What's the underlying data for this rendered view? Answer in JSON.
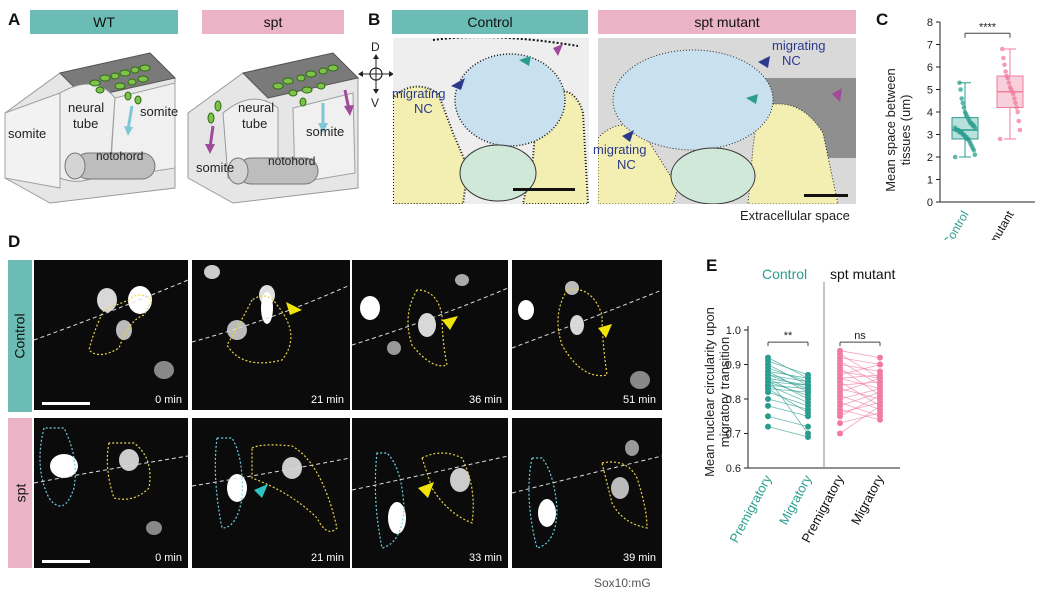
{
  "panels": {
    "A": {
      "label": "A",
      "wt_banner": "WT",
      "spt_banner": "spt",
      "wt_labels": {
        "somite_left": "somite",
        "neural": "neural",
        "tube": "tube",
        "somite_right": "somite",
        "notochord": "notohord"
      },
      "spt_labels": {
        "neural": "neural",
        "tube": "tube",
        "somite_right": "somite",
        "somite_left": "somite",
        "notochord": "notohord"
      }
    },
    "B": {
      "label": "B",
      "control_banner": "Control",
      "spt_banner": "spt mutant",
      "axis": {
        "d": "D",
        "v": "V"
      },
      "control_labels": {
        "migrating": "migrating",
        "nc": "NC"
      },
      "spt_labels": {
        "migrating_top": "migrating",
        "nc_top": "NC",
        "migrating_bottom": "migrating",
        "nc_bottom": "NC"
      },
      "caption": "Extracellular space"
    },
    "C": {
      "label": "C",
      "ylabel_line1": "Mean space between",
      "ylabel_line2": "tissues (um)",
      "significance": "****",
      "yticks": [
        "0",
        "1",
        "2",
        "3",
        "4",
        "5",
        "6",
        "7",
        "8"
      ],
      "categories": [
        "Control",
        "spt mutant"
      ]
    },
    "D": {
      "label": "D",
      "row_control": "Control",
      "row_spt": "spt",
      "control_times": [
        "0 min",
        "21 min",
        "36 min",
        "51 min"
      ],
      "spt_times": [
        "0 min",
        "21 min",
        "33 min",
        "39 min"
      ],
      "caption": "Sox10:mG"
    },
    "E": {
      "label": "E",
      "group_control": "Control",
      "group_spt": "spt mutant",
      "ylabel_line1": "Mean nuclear circularity upon",
      "ylabel_line2": "migratory transition",
      "yticks": [
        "0.6",
        "0.7",
        "0.8",
        "0.9",
        "1.0"
      ],
      "sig_control": "**",
      "sig_spt": "ns",
      "xlabels": [
        "Premigratory",
        "Migratory",
        "Premigratory",
        "Migratory"
      ]
    }
  },
  "colors": {
    "teal": "#6bbcb4",
    "pink": "#eab3c6",
    "teal_dark": "#2a9d8f",
    "pink_dark": "#f07ca0",
    "navy": "#2b3a8c",
    "purple": "#a04a9a",
    "yellow": "#e8d44a",
    "cyan": "#6ecfe0"
  },
  "chart_data": [
    {
      "type": "box",
      "title": "",
      "xlabel": "",
      "ylabel": "Mean space between tissues (um)",
      "ylim": [
        0,
        8
      ],
      "categories": [
        "Control",
        "spt mutant"
      ],
      "series": [
        {
          "name": "Control",
          "q1": 2.8,
          "median": 3.2,
          "q3": 3.75,
          "whisker_low": 2.0,
          "whisker_high": 5.3,
          "values": [
            2.0,
            2.1,
            2.3,
            2.4,
            2.5,
            2.6,
            2.7,
            2.8,
            2.8,
            2.9,
            2.9,
            3.0,
            3.0,
            3.1,
            3.1,
            3.1,
            3.2,
            3.2,
            3.2,
            3.3,
            3.3,
            3.4,
            3.4,
            3.5,
            3.5,
            3.6,
            3.7,
            3.8,
            3.9,
            4.0,
            4.2,
            4.4,
            4.6,
            5.0,
            5.3
          ]
        },
        {
          "name": "spt mutant",
          "q1": 4.2,
          "median": 4.9,
          "q3": 5.6,
          "whisker_low": 2.8,
          "whisker_high": 6.8,
          "values": [
            2.8,
            3.2,
            3.6,
            4.0,
            4.2,
            4.4,
            4.6,
            4.8,
            4.9,
            5.0,
            5.1,
            5.3,
            5.5,
            5.6,
            5.8,
            6.1,
            6.4,
            6.8
          ]
        }
      ],
      "annotation": "****"
    },
    {
      "type": "paired-line",
      "title": "",
      "ylabel": "Mean nuclear circularity upon migratory transition",
      "ylim": [
        0.6,
        1.0
      ],
      "categories": [
        "Premigratory",
        "Migratory",
        "Premigratory",
        "Migratory"
      ],
      "series": [
        {
          "name": "Control",
          "pairs": [
            [
              0.92,
              0.86
            ],
            [
              0.91,
              0.87
            ],
            [
              0.9,
              0.84
            ],
            [
              0.89,
              0.85
            ],
            [
              0.88,
              0.86
            ],
            [
              0.88,
              0.82
            ],
            [
              0.87,
              0.85
            ],
            [
              0.87,
              0.83
            ],
            [
              0.86,
              0.84
            ],
            [
              0.86,
              0.8
            ],
            [
              0.85,
              0.84
            ],
            [
              0.85,
              0.81
            ],
            [
              0.84,
              0.83
            ],
            [
              0.84,
              0.79
            ],
            [
              0.83,
              0.82
            ],
            [
              0.82,
              0.78
            ],
            [
              0.8,
              0.77
            ],
            [
              0.78,
              0.75
            ],
            [
              0.75,
              0.72
            ],
            [
              0.72,
              0.69
            ],
            [
              0.83,
              0.76
            ],
            [
              0.86,
              0.7
            ]
          ]
        },
        {
          "name": "spt mutant",
          "pairs": [
            [
              0.94,
              0.92
            ],
            [
              0.93,
              0.86
            ],
            [
              0.92,
              0.9
            ],
            [
              0.91,
              0.84
            ],
            [
              0.9,
              0.88
            ],
            [
              0.89,
              0.81
            ],
            [
              0.88,
              0.86
            ],
            [
              0.87,
              0.9
            ],
            [
              0.86,
              0.83
            ],
            [
              0.86,
              0.87
            ],
            [
              0.85,
              0.78
            ],
            [
              0.84,
              0.85
            ],
            [
              0.83,
              0.8
            ],
            [
              0.82,
              0.86
            ],
            [
              0.81,
              0.77
            ],
            [
              0.8,
              0.83
            ],
            [
              0.79,
              0.75
            ],
            [
              0.78,
              0.82
            ],
            [
              0.77,
              0.74
            ],
            [
              0.76,
              0.79
            ],
            [
              0.75,
              0.81
            ],
            [
              0.73,
              0.76
            ],
            [
              0.7,
              0.78
            ]
          ]
        }
      ],
      "annotations": [
        "**",
        "ns"
      ]
    }
  ]
}
